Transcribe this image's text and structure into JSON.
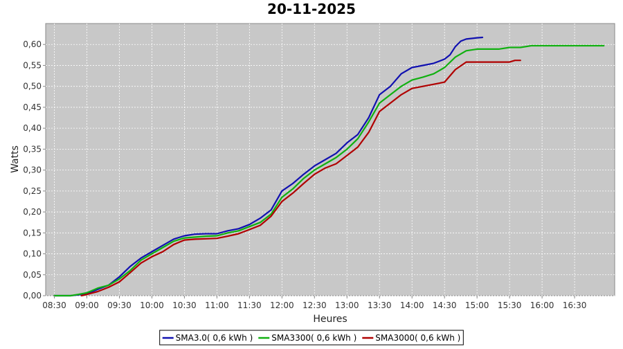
{
  "chart_data": {
    "type": "line",
    "title": "20-11-2025",
    "xlabel": "Heures",
    "ylabel": "Watts",
    "x_ticks": [
      "08:30",
      "09:00",
      "09:30",
      "10:00",
      "10:30",
      "11:00",
      "11:30",
      "12:00",
      "12:30",
      "13:00",
      "13:30",
      "14:00",
      "14:30",
      "15:00",
      "15:30",
      "16:00",
      "16:30"
    ],
    "y_ticks": [
      "0,00",
      "0,05",
      "0,10",
      "0,15",
      "0,20",
      "0,25",
      "0,30",
      "0,35",
      "0,40",
      "0,45",
      "0,50",
      "0,55",
      "0,60"
    ],
    "xlim": [
      "08:22",
      "17:07"
    ],
    "ylim": [
      0,
      0.65
    ],
    "grid": true,
    "legend_position": "bottom",
    "background_color": "#c8c8c8",
    "grid_color": "#ffffff",
    "series": [
      {
        "name": "SMA3.0( 0,6 kWh )",
        "color": "#1010b0",
        "points": [
          [
            "08:30",
            0.0
          ],
          [
            "08:45",
            0.0
          ],
          [
            "08:52",
            0.002
          ],
          [
            "09:00",
            0.005
          ],
          [
            "09:10",
            0.015
          ],
          [
            "09:20",
            0.025
          ],
          [
            "09:30",
            0.045
          ],
          [
            "09:40",
            0.07
          ],
          [
            "09:50",
            0.09
          ],
          [
            "10:00",
            0.105
          ],
          [
            "10:10",
            0.12
          ],
          [
            "10:20",
            0.135
          ],
          [
            "10:30",
            0.143
          ],
          [
            "10:40",
            0.147
          ],
          [
            "10:50",
            0.148
          ],
          [
            "11:00",
            0.148
          ],
          [
            "11:10",
            0.155
          ],
          [
            "11:20",
            0.16
          ],
          [
            "11:30",
            0.17
          ],
          [
            "11:40",
            0.185
          ],
          [
            "11:50",
            0.205
          ],
          [
            "12:00",
            0.25
          ],
          [
            "12:10",
            0.268
          ],
          [
            "12:20",
            0.29
          ],
          [
            "12:30",
            0.31
          ],
          [
            "12:40",
            0.325
          ],
          [
            "12:50",
            0.34
          ],
          [
            "13:00",
            0.365
          ],
          [
            "13:10",
            0.385
          ],
          [
            "13:20",
            0.425
          ],
          [
            "13:30",
            0.48
          ],
          [
            "13:40",
            0.5
          ],
          [
            "13:50",
            0.53
          ],
          [
            "14:00",
            0.545
          ],
          [
            "14:10",
            0.55
          ],
          [
            "14:20",
            0.555
          ],
          [
            "14:30",
            0.565
          ],
          [
            "14:35",
            0.575
          ],
          [
            "14:40",
            0.595
          ],
          [
            "14:45",
            0.608
          ],
          [
            "14:50",
            0.613
          ],
          [
            "15:00",
            0.616
          ],
          [
            "15:05",
            0.617
          ]
        ]
      },
      {
        "name": "SMA3300( 0,6 kWh )",
        "color": "#10b010",
        "points": [
          [
            "08:30",
            0.0
          ],
          [
            "08:45",
            0.0
          ],
          [
            "08:52",
            0.003
          ],
          [
            "09:00",
            0.007
          ],
          [
            "09:10",
            0.018
          ],
          [
            "09:20",
            0.025
          ],
          [
            "09:30",
            0.04
          ],
          [
            "09:40",
            0.06
          ],
          [
            "09:50",
            0.085
          ],
          [
            "10:00",
            0.1
          ],
          [
            "10:10",
            0.115
          ],
          [
            "10:20",
            0.13
          ],
          [
            "10:30",
            0.138
          ],
          [
            "10:40",
            0.14
          ],
          [
            "10:50",
            0.142
          ],
          [
            "11:00",
            0.143
          ],
          [
            "11:10",
            0.15
          ],
          [
            "11:20",
            0.155
          ],
          [
            "11:30",
            0.165
          ],
          [
            "11:40",
            0.175
          ],
          [
            "11:50",
            0.195
          ],
          [
            "12:00",
            0.235
          ],
          [
            "12:10",
            0.255
          ],
          [
            "12:20",
            0.28
          ],
          [
            "12:30",
            0.3
          ],
          [
            "12:40",
            0.315
          ],
          [
            "12:50",
            0.33
          ],
          [
            "13:00",
            0.35
          ],
          [
            "13:10",
            0.375
          ],
          [
            "13:20",
            0.415
          ],
          [
            "13:30",
            0.46
          ],
          [
            "13:40",
            0.48
          ],
          [
            "13:50",
            0.5
          ],
          [
            "14:00",
            0.515
          ],
          [
            "14:10",
            0.522
          ],
          [
            "14:20",
            0.53
          ],
          [
            "14:30",
            0.545
          ],
          [
            "14:40",
            0.57
          ],
          [
            "14:50",
            0.585
          ],
          [
            "15:00",
            0.589
          ],
          [
            "15:10",
            0.589
          ],
          [
            "15:20",
            0.589
          ],
          [
            "15:30",
            0.593
          ],
          [
            "15:40",
            0.593
          ],
          [
            "15:50",
            0.597
          ],
          [
            "16:00",
            0.597
          ],
          [
            "16:30",
            0.597
          ],
          [
            "16:57",
            0.597
          ]
        ]
      },
      {
        "name": "SMA3000( 0,6 kWh )",
        "color": "#b00000",
        "points": [
          [
            "08:55",
            0.0
          ],
          [
            "09:00",
            0.003
          ],
          [
            "09:10",
            0.01
          ],
          [
            "09:20",
            0.02
          ],
          [
            "09:30",
            0.033
          ],
          [
            "09:40",
            0.055
          ],
          [
            "09:50",
            0.078
          ],
          [
            "10:00",
            0.093
          ],
          [
            "10:10",
            0.105
          ],
          [
            "10:20",
            0.122
          ],
          [
            "10:30",
            0.133
          ],
          [
            "10:40",
            0.135
          ],
          [
            "10:50",
            0.136
          ],
          [
            "11:00",
            0.137
          ],
          [
            "11:10",
            0.142
          ],
          [
            "11:20",
            0.148
          ],
          [
            "11:30",
            0.158
          ],
          [
            "11:40",
            0.168
          ],
          [
            "11:50",
            0.19
          ],
          [
            "12:00",
            0.225
          ],
          [
            "12:10",
            0.245
          ],
          [
            "12:20",
            0.268
          ],
          [
            "12:30",
            0.29
          ],
          [
            "12:40",
            0.305
          ],
          [
            "12:50",
            0.315
          ],
          [
            "13:00",
            0.335
          ],
          [
            "13:10",
            0.355
          ],
          [
            "13:20",
            0.39
          ],
          [
            "13:30",
            0.44
          ],
          [
            "13:40",
            0.46
          ],
          [
            "13:50",
            0.48
          ],
          [
            "14:00",
            0.495
          ],
          [
            "14:10",
            0.5
          ],
          [
            "14:20",
            0.505
          ],
          [
            "14:30",
            0.51
          ],
          [
            "14:40",
            0.54
          ],
          [
            "14:50",
            0.558
          ],
          [
            "15:00",
            0.558
          ],
          [
            "15:20",
            0.558
          ],
          [
            "15:30",
            0.558
          ],
          [
            "15:35",
            0.562
          ],
          [
            "15:40",
            0.562
          ]
        ]
      }
    ]
  }
}
